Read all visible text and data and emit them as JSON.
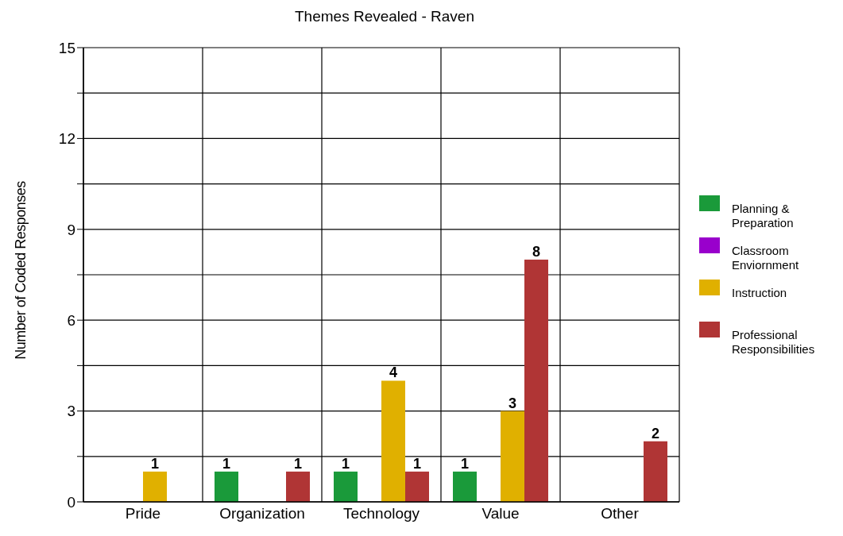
{
  "chart_data": {
    "type": "bar",
    "title": "Themes Revealed - Raven",
    "ylabel": "Number of Coded Responses",
    "categories": [
      "Pride",
      "Organization",
      "Technology",
      "Value",
      "Other"
    ],
    "series": [
      {
        "name": "Planning & Preparation",
        "color": "#1a9a3a",
        "values": [
          0,
          1,
          1,
          1,
          0
        ],
        "value_labels": [
          null,
          "1",
          "1",
          "1",
          null
        ]
      },
      {
        "name": "Classroom Enviornment",
        "color": "#9900cc",
        "values": [
          0,
          0,
          0,
          0,
          0
        ],
        "value_labels": [
          null,
          null,
          null,
          null,
          null
        ]
      },
      {
        "name": "Instruction",
        "color": "#e0b000",
        "values": [
          1,
          0,
          4,
          3,
          0
        ],
        "value_labels": [
          "1",
          null,
          "4",
          "3",
          null
        ]
      },
      {
        "name": "Professional Responsibilities",
        "color": "#b03535",
        "values": [
          0,
          1,
          1,
          8,
          2
        ],
        "value_labels": [
          null,
          "1",
          "1",
          "8",
          "2"
        ]
      }
    ],
    "ylim": [
      0,
      15
    ],
    "yticks": [
      0,
      {
        "value": 1.5,
        "label": null
      },
      3,
      {
        "value": 4.5,
        "label": null
      },
      6,
      {
        "value": 7.5,
        "label": null
      },
      9,
      {
        "value": 10.5,
        "label": null
      },
      12,
      {
        "value": 13.5,
        "label": null
      },
      15
    ],
    "grid": true,
    "legend": "right"
  }
}
